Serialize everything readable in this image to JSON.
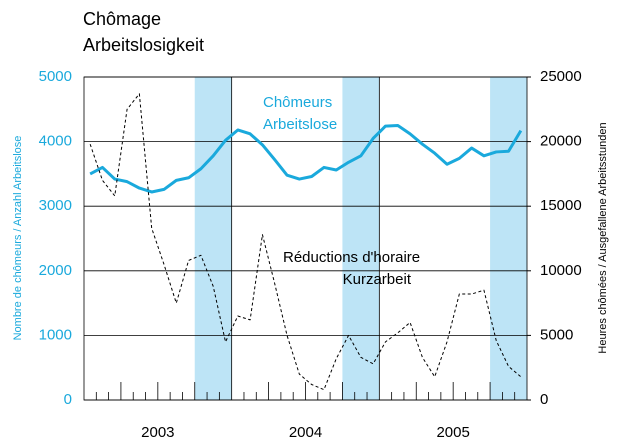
{
  "chart_data": {
    "type": "line",
    "title": "Chômage",
    "subtitle": "Arbeitslosigkeit",
    "y_label": "Nombre de chômeurs / Anzahl Arbeitslose",
    "y2_label": "Heures chômées / Ausgefallene Arbeitsstunden",
    "years": [
      "2003",
      "2004",
      "2005"
    ],
    "categories": [
      null,
      null,
      null,
      null,
      null,
      null,
      null,
      null,
      null,
      null,
      null,
      null,
      null,
      null,
      null,
      null,
      null,
      null,
      null,
      null,
      null,
      null,
      null,
      null,
      null,
      null,
      null,
      null,
      null,
      null,
      null,
      null,
      null,
      null,
      null,
      null
    ],
    "series": [
      {
        "name": "Chômeurs / Arbeitslose",
        "color": "#1aa9dc",
        "axis": "y",
        "values": [
          3500,
          3600,
          3420,
          3380,
          3280,
          3220,
          3260,
          3400,
          3440,
          3580,
          3780,
          4020,
          4180,
          4120,
          3950,
          3720,
          3480,
          3420,
          3460,
          3600,
          3560,
          3680,
          3780,
          4050,
          4240,
          4250,
          4120,
          3960,
          3820,
          3650,
          3740,
          3900,
          3780,
          3840,
          3850,
          4170
        ]
      },
      {
        "name": "Réductions d'horaire / Kurzarbeit",
        "color": "#000000",
        "axis": "y2",
        "dashed": true,
        "values": [
          19800,
          17000,
          15800,
          22500,
          23700,
          13300,
          10500,
          7500,
          10800,
          11200,
          8800,
          4500,
          6500,
          6200,
          12800,
          9000,
          5000,
          2000,
          1200,
          800,
          3200,
          5000,
          3300,
          2800,
          4500,
          5200,
          6000,
          3300,
          1800,
          4500,
          8200,
          8200,
          8500,
          4600,
          2600,
          1800
        ]
      }
    ],
    "annotations": [
      {
        "lines": [
          "Chômeurs",
          "Arbeitslose"
        ],
        "color": "#1aa9dc"
      },
      {
        "lines": [
          "Réductions d'horaire",
          "Kurzarbeit"
        ],
        "color": "#000000"
      }
    ],
    "ylim": [
      0,
      5000
    ],
    "yticks": [
      0,
      1000,
      2000,
      3000,
      4000,
      5000
    ],
    "y2lim": [
      0,
      25000
    ],
    "y2ticks": [
      0,
      5000,
      10000,
      15000,
      20000,
      25000
    ],
    "grid": true,
    "band_color": "#bde4f6"
  }
}
